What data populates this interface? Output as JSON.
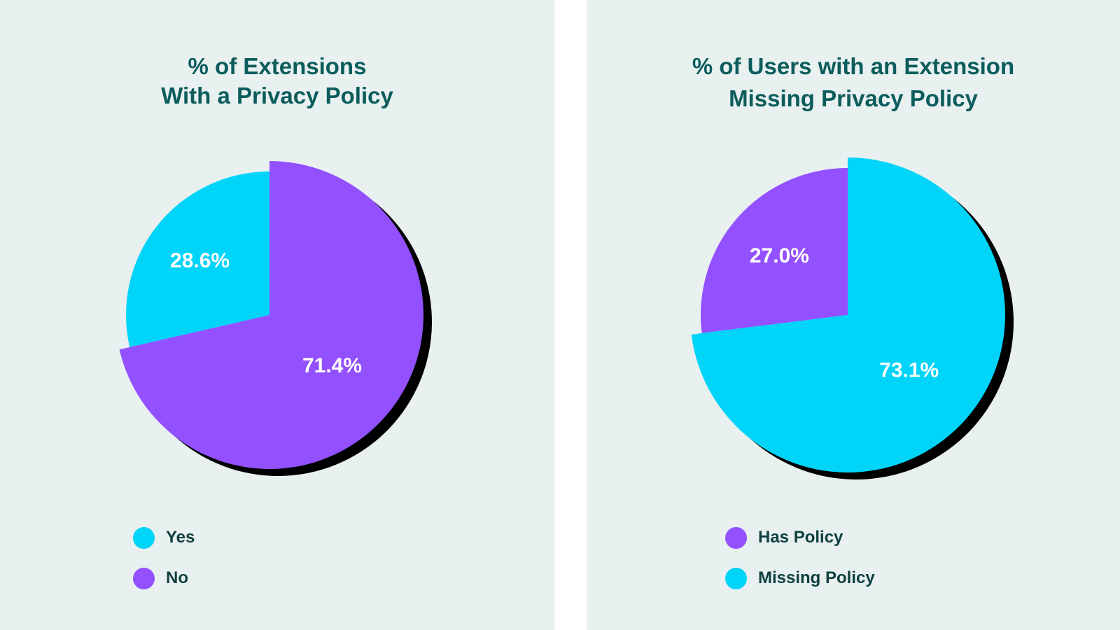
{
  "chart_data": [
    {
      "type": "pie",
      "title_lines": [
        "% of Extensions",
        "With a Privacy Policy"
      ],
      "slices": [
        {
          "label": "Yes",
          "value": 28.6,
          "display": "28.6%",
          "color": "#00d4f8"
        },
        {
          "label": "No",
          "value": 71.4,
          "display": "71.4%",
          "color": "#9350ff"
        }
      ],
      "legend": [
        {
          "label": "Yes",
          "color": "#00d4f8"
        },
        {
          "label": "No",
          "color": "#9350ff"
        }
      ],
      "legend_position": "bottom-left",
      "exploded_slice": "No",
      "shadow_color": "#000000"
    },
    {
      "type": "pie",
      "title_lines": [
        "% of Users with an Extension",
        "Missing Privacy Policy"
      ],
      "slices": [
        {
          "label": "Has Policy",
          "value": 27.0,
          "display": "27.0%",
          "color": "#9350ff"
        },
        {
          "label": "Missing Policy",
          "value": 73.1,
          "display": "73.1%",
          "color": "#00d4f8"
        }
      ],
      "legend": [
        {
          "label": "Has Policy",
          "color": "#9350ff"
        },
        {
          "label": "Missing Policy",
          "color": "#00d4f8"
        }
      ],
      "legend_position": "bottom-left",
      "exploded_slice": "Missing Policy",
      "shadow_color": "#000000"
    }
  ],
  "colors": {
    "background": "#e8f0f0",
    "title": "#0c5c5c",
    "legend_text": "#10403f"
  }
}
